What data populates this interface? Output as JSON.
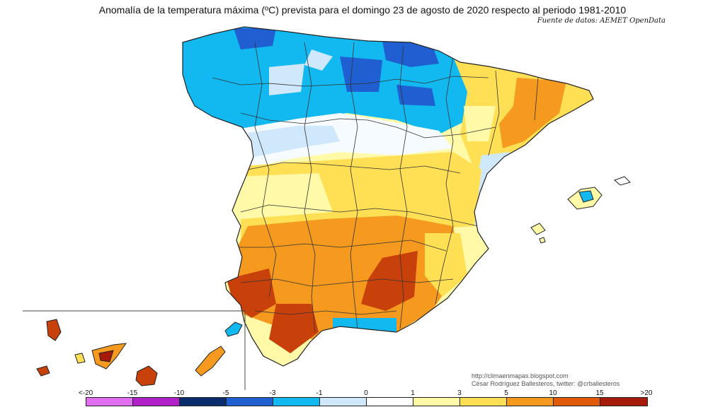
{
  "header": {
    "title": "Anomalía de la temperatura máxima (ºC) prevista para el domingo 23 de agosto de 2020 respecto al periodo 1981-2010",
    "source": "Fuente de datos: AEMET OpenData"
  },
  "credits": {
    "blog": "http://climaenmapas.blogspot.com",
    "author": "César Rodríguez Ballesteros, twitter: @crballesteros"
  },
  "legend": {
    "ticks": [
      "<-20",
      "-15",
      "-10",
      "-5",
      "-3",
      "-1",
      "0",
      "1",
      "3",
      "5",
      "10",
      "15",
      ">20"
    ],
    "colors": [
      "#e070f0",
      "#b020c8",
      "#0a2d6e",
      "#1f5fd1",
      "#12b8f0",
      "#cfe8fb",
      "#ffffff",
      "#fff9a8",
      "#ffe055",
      "#f59a1e",
      "#e05a0a",
      "#a51a08",
      "#5e2e06"
    ]
  },
  "map": {
    "region": "Península Ibérica, Baleares y Canarias",
    "palette": {
      "sea": "#ffffff",
      "blue_dark": "#1f5fd1",
      "blue": "#12b8f0",
      "blue_light": "#cfe8fb",
      "white": "#f6fbff",
      "yellow_light": "#fff9a8",
      "yellow": "#ffe055",
      "orange": "#f59a1e",
      "red": "#c8400a",
      "dark_red": "#a51a08",
      "border": "#333333"
    }
  }
}
